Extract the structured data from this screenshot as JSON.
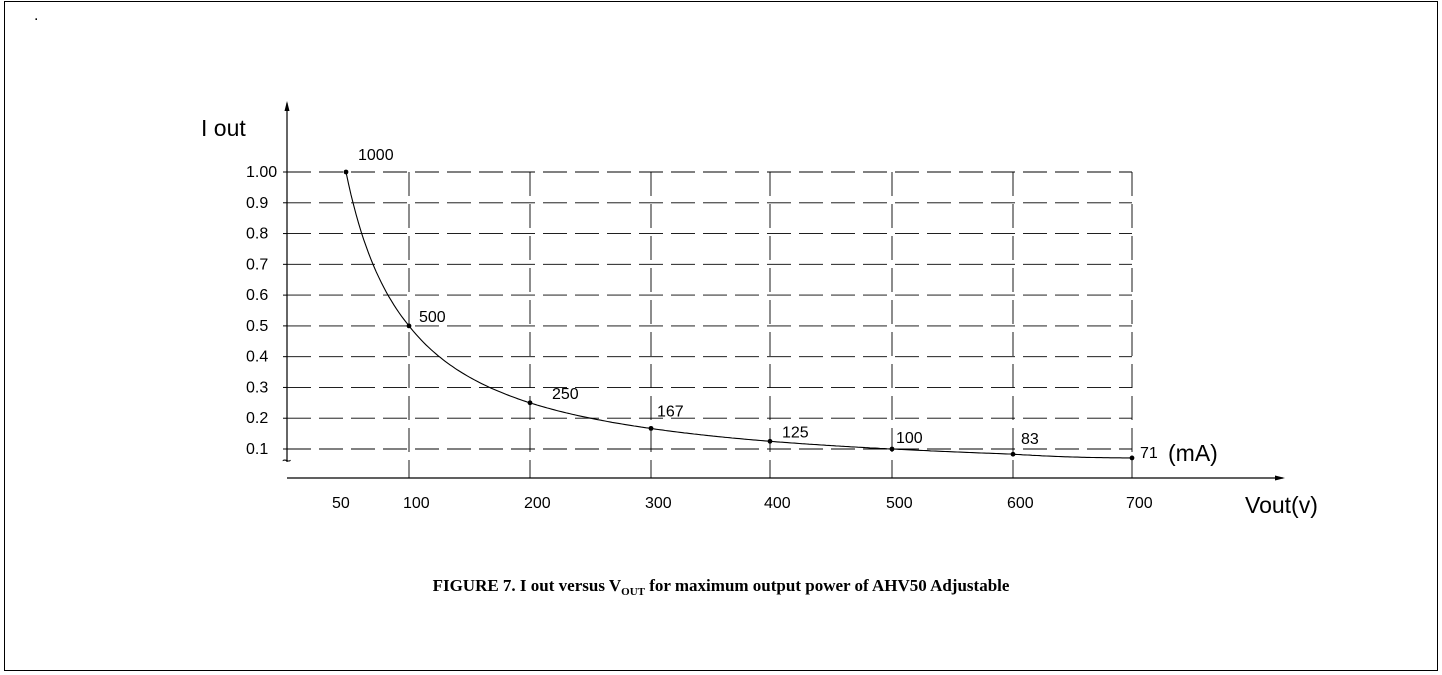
{
  "chart_data": {
    "type": "line",
    "ylabel": "I out",
    "xlabel": "Vout(v)",
    "y_ticks": [
      "1.00",
      "0.9",
      "0.8",
      "0.7",
      "0.6",
      "0.5",
      "0.4",
      "0.3",
      "0.2",
      "0.1"
    ],
    "y_tick_values": [
      1.0,
      0.9,
      0.8,
      0.7,
      0.6,
      0.5,
      0.4,
      0.3,
      0.2,
      0.1
    ],
    "x_ticks": [
      "50",
      "100",
      "200",
      "300",
      "400",
      "500",
      "600",
      "700"
    ],
    "x_tick_values": [
      50,
      100,
      200,
      300,
      400,
      500,
      600,
      700
    ],
    "points": [
      {
        "x": 50,
        "y": 1.0,
        "label": "1000"
      },
      {
        "x": 100,
        "y": 0.5,
        "label": "500"
      },
      {
        "x": 200,
        "y": 0.25,
        "label": "250"
      },
      {
        "x": 300,
        "y": 0.167,
        "label": "167"
      },
      {
        "x": 400,
        "y": 0.125,
        "label": "125"
      },
      {
        "x": 500,
        "y": 0.1,
        "label": "100"
      },
      {
        "x": 600,
        "y": 0.083,
        "label": "83"
      },
      {
        "x": 700,
        "y": 0.071,
        "label": "71"
      }
    ],
    "unit_label": "(mA)",
    "grid": true,
    "grid_style": "dashed"
  },
  "caption": {
    "prefix": "FIGURE 7. I out versus V",
    "subscript": "OUT",
    "suffix": " for maximum output power of AHV50 Adjustable"
  }
}
